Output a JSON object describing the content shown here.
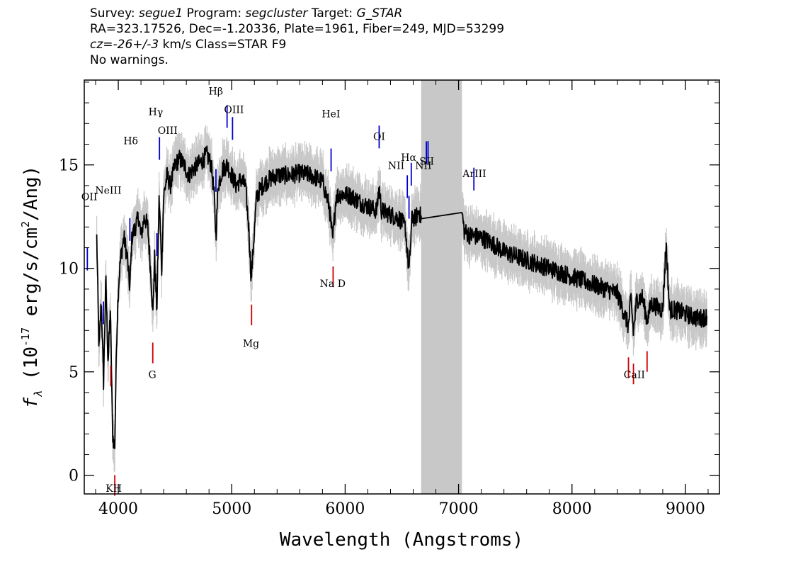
{
  "header": {
    "line1": {
      "survey_label": "Survey:",
      "survey": "segue1",
      "program_label": "Program:",
      "program": "segcluster",
      "target_label": "Target:",
      "target": "G_STAR"
    },
    "line2": "RA=323.17526, Dec=-1.20336, Plate=1961, Fiber=249, MJD=53299",
    "line3": {
      "cz_label": "cz=",
      "cz_value": "-26+/-3",
      "cz_unit": "km/s",
      "class_text": "Class=STAR F9"
    },
    "line4": "No warnings."
  },
  "colors": {
    "flux": "#000000",
    "error_band": "#c8c8c8",
    "masked_region": "#c8c8c8",
    "emission_marker": "#0000cc",
    "absorption_marker": "#cc0000"
  },
  "chart_data": {
    "type": "line",
    "xlabel": "Wavelength (Angstroms)",
    "ylabel_parts": {
      "f": "f",
      "sub": "λ",
      "open": "(10",
      "exp": "-17",
      "rest": "erg/s/cm",
      "exp2": "2",
      "tail": "/Ang)"
    },
    "xlim": [
      3700,
      9300
    ],
    "ylim": [
      -0.9,
      19.1
    ],
    "x_ticks": [
      4000,
      5000,
      6000,
      7000,
      8000,
      9000
    ],
    "x_tick_labels": [
      "4000",
      "5000",
      "6000",
      "7000",
      "8000",
      "9000"
    ],
    "y_ticks": [
      0,
      5,
      10,
      15
    ],
    "y_tick_labels": [
      "0",
      "5",
      "10",
      "15"
    ],
    "masked_region": [
      6670,
      7030
    ],
    "series": [
      {
        "points": [
          [
            3810,
            11.5
          ],
          [
            3830,
            6.0
          ],
          [
            3850,
            8.5
          ],
          [
            3870,
            4.5
          ],
          [
            3890,
            9.5
          ],
          [
            3910,
            5.5
          ],
          [
            3930,
            8.0
          ],
          [
            3950,
            2.0
          ],
          [
            3968,
            1.2
          ],
          [
            3985,
            6.5
          ],
          [
            4000,
            9.0
          ],
          [
            4020,
            10.5
          ],
          [
            4050,
            11.5
          ],
          [
            4080,
            10.5
          ],
          [
            4101,
            9.0
          ],
          [
            4120,
            11.5
          ],
          [
            4150,
            12.0
          ],
          [
            4180,
            12.5
          ],
          [
            4200,
            11.5
          ],
          [
            4230,
            12.5
          ],
          [
            4260,
            12.0
          ],
          [
            4290,
            9.5
          ],
          [
            4305,
            7.8
          ],
          [
            4320,
            10.5
          ],
          [
            4340,
            8.0
          ],
          [
            4360,
            13.5
          ],
          [
            4383,
            10.0
          ],
          [
            4400,
            13.5
          ],
          [
            4430,
            14.5
          ],
          [
            4460,
            14.0
          ],
          [
            4500,
            15.0
          ],
          [
            4540,
            15.3
          ],
          [
            4580,
            15.0
          ],
          [
            4620,
            14.5
          ],
          [
            4660,
            14.8
          ],
          [
            4700,
            15.0
          ],
          [
            4740,
            15.2
          ],
          [
            4780,
            15.5
          ],
          [
            4820,
            15.0
          ],
          [
            4845,
            13.5
          ],
          [
            4861,
            11.5
          ],
          [
            4880,
            14.0
          ],
          [
            4920,
            14.8
          ],
          [
            4960,
            15.0
          ],
          [
            5000,
            14.5
          ],
          [
            5040,
            14.0
          ],
          [
            5080,
            14.3
          ],
          [
            5120,
            14.0
          ],
          [
            5150,
            12.0
          ],
          [
            5172,
            9.5
          ],
          [
            5190,
            11.0
          ],
          [
            5220,
            13.5
          ],
          [
            5270,
            14.0
          ],
          [
            5330,
            14.3
          ],
          [
            5400,
            14.5
          ],
          [
            5500,
            14.5
          ],
          [
            5600,
            14.6
          ],
          [
            5700,
            14.5
          ],
          [
            5800,
            14.2
          ],
          [
            5860,
            13.0
          ],
          [
            5890,
            11.3
          ],
          [
            5920,
            13.5
          ],
          [
            5980,
            13.6
          ],
          [
            6050,
            13.5
          ],
          [
            6130,
            13.2
          ],
          [
            6200,
            13.0
          ],
          [
            6280,
            12.8
          ],
          [
            6300,
            14.0
          ],
          [
            6320,
            12.8
          ],
          [
            6400,
            12.6
          ],
          [
            6480,
            12.4
          ],
          [
            6530,
            12.0
          ],
          [
            6563,
            9.8
          ],
          [
            6590,
            12.5
          ],
          [
            6620,
            12.4
          ],
          [
            6650,
            12.8
          ],
          [
            6670,
            12.4
          ],
          [
            7030,
            12.7
          ],
          [
            7050,
            11.8
          ],
          [
            7100,
            11.6
          ],
          [
            7200,
            11.5
          ],
          [
            7300,
            11.2
          ],
          [
            7400,
            10.8
          ],
          [
            7500,
            10.6
          ],
          [
            7600,
            10.4
          ],
          [
            7700,
            10.2
          ],
          [
            7800,
            10.0
          ],
          [
            7900,
            9.8
          ],
          [
            8000,
            9.6
          ],
          [
            8100,
            9.4
          ],
          [
            8200,
            9.2
          ],
          [
            8300,
            9.0
          ],
          [
            8400,
            8.8
          ],
          [
            8498,
            7.2
          ],
          [
            8520,
            8.6
          ],
          [
            8542,
            6.9
          ],
          [
            8570,
            8.5
          ],
          [
            8620,
            8.6
          ],
          [
            8662,
            7.5
          ],
          [
            8700,
            8.3
          ],
          [
            8760,
            8.1
          ],
          [
            8800,
            8.0
          ],
          [
            8830,
            11.2
          ],
          [
            8860,
            8.0
          ],
          [
            8900,
            8.0
          ],
          [
            8960,
            7.9
          ],
          [
            9000,
            7.8
          ],
          [
            9050,
            7.7
          ],
          [
            9100,
            7.6
          ],
          [
            9150,
            7.6
          ],
          [
            9190,
            7.7
          ]
        ]
      }
    ],
    "emission_lines": [
      {
        "label": "OII",
        "wave": 3727
      },
      {
        "label": "NeIII",
        "wave": 3869
      },
      {
        "label": "Hδ",
        "wave": 4102
      },
      {
        "label": "Hγ",
        "wave": 4340
      },
      {
        "label": "OIII",
        "wave": 4363
      },
      {
        "label": "Hβ",
        "wave": 4861
      },
      {
        "label": "OIII",
        "wave": 4959
      },
      {
        "label": "OIII",
        "wave": 5007
      },
      {
        "label": "HeI",
        "wave": 5876
      },
      {
        "label": "OI",
        "wave": 6300
      },
      {
        "label": "NII",
        "wave": 6548
      },
      {
        "label": "Hα",
        "wave": 6563
      },
      {
        "label": "NII",
        "wave": 6583
      },
      {
        "label": "SII",
        "wave": 6716
      },
      {
        "label": "SII",
        "wave": 6731
      },
      {
        "label": "ArIII",
        "wave": 7135
      }
    ],
    "absorption_lines": [
      {
        "label": "K",
        "wave": 3934
      },
      {
        "label": "H",
        "wave": 3969
      },
      {
        "label": "G",
        "wave": 4304
      },
      {
        "label": "Mg",
        "wave": 5175
      },
      {
        "label": "Na D",
        "wave": 5894
      },
      {
        "label": "CaII",
        "wave": 8498
      },
      {
        "label": "CaII",
        "wave": 8542
      },
      {
        "label": "CaII",
        "wave": 8662
      }
    ],
    "marker_labels": [
      {
        "text": "OII",
        "wave": 3745,
        "flux": 13.3
      },
      {
        "text": "NeIII",
        "wave": 3912,
        "flux": 13.6
      },
      {
        "text": "Hδ",
        "wave": 4110,
        "flux": 16.0
      },
      {
        "text": "Hγ",
        "wave": 4330,
        "flux": 17.4
      },
      {
        "text": "OIII",
        "wave": 4435,
        "flux": 16.5
      },
      {
        "text": "Hβ",
        "wave": 4860,
        "flux": 18.4
      },
      {
        "text": "OIII",
        "wave": 5020,
        "flux": 17.5
      },
      {
        "text": "HeI",
        "wave": 5875,
        "flux": 17.3
      },
      {
        "text": "OI",
        "wave": 6300,
        "flux": 16.2
      },
      {
        "text": "NII",
        "wave": 6450,
        "flux": 14.8
      },
      {
        "text": "Hα",
        "wave": 6560,
        "flux": 15.2
      },
      {
        "text": "NII",
        "wave": 6690,
        "flux": 14.8
      },
      {
        "text": "SII",
        "wave": 6720,
        "flux": 15.0
      },
      {
        "text": "ArIII",
        "wave": 7140,
        "flux": 14.4
      },
      {
        "text": "KH",
        "wave": 3960,
        "flux": -0.8
      },
      {
        "text": "G",
        "wave": 4300,
        "flux": 4.7
      },
      {
        "text": "Mg",
        "wave": 5170,
        "flux": 6.2
      },
      {
        "text": "Na D",
        "wave": 5890,
        "flux": 9.1
      },
      {
        "text": "CaII",
        "wave": 8550,
        "flux": 4.7
      }
    ]
  }
}
